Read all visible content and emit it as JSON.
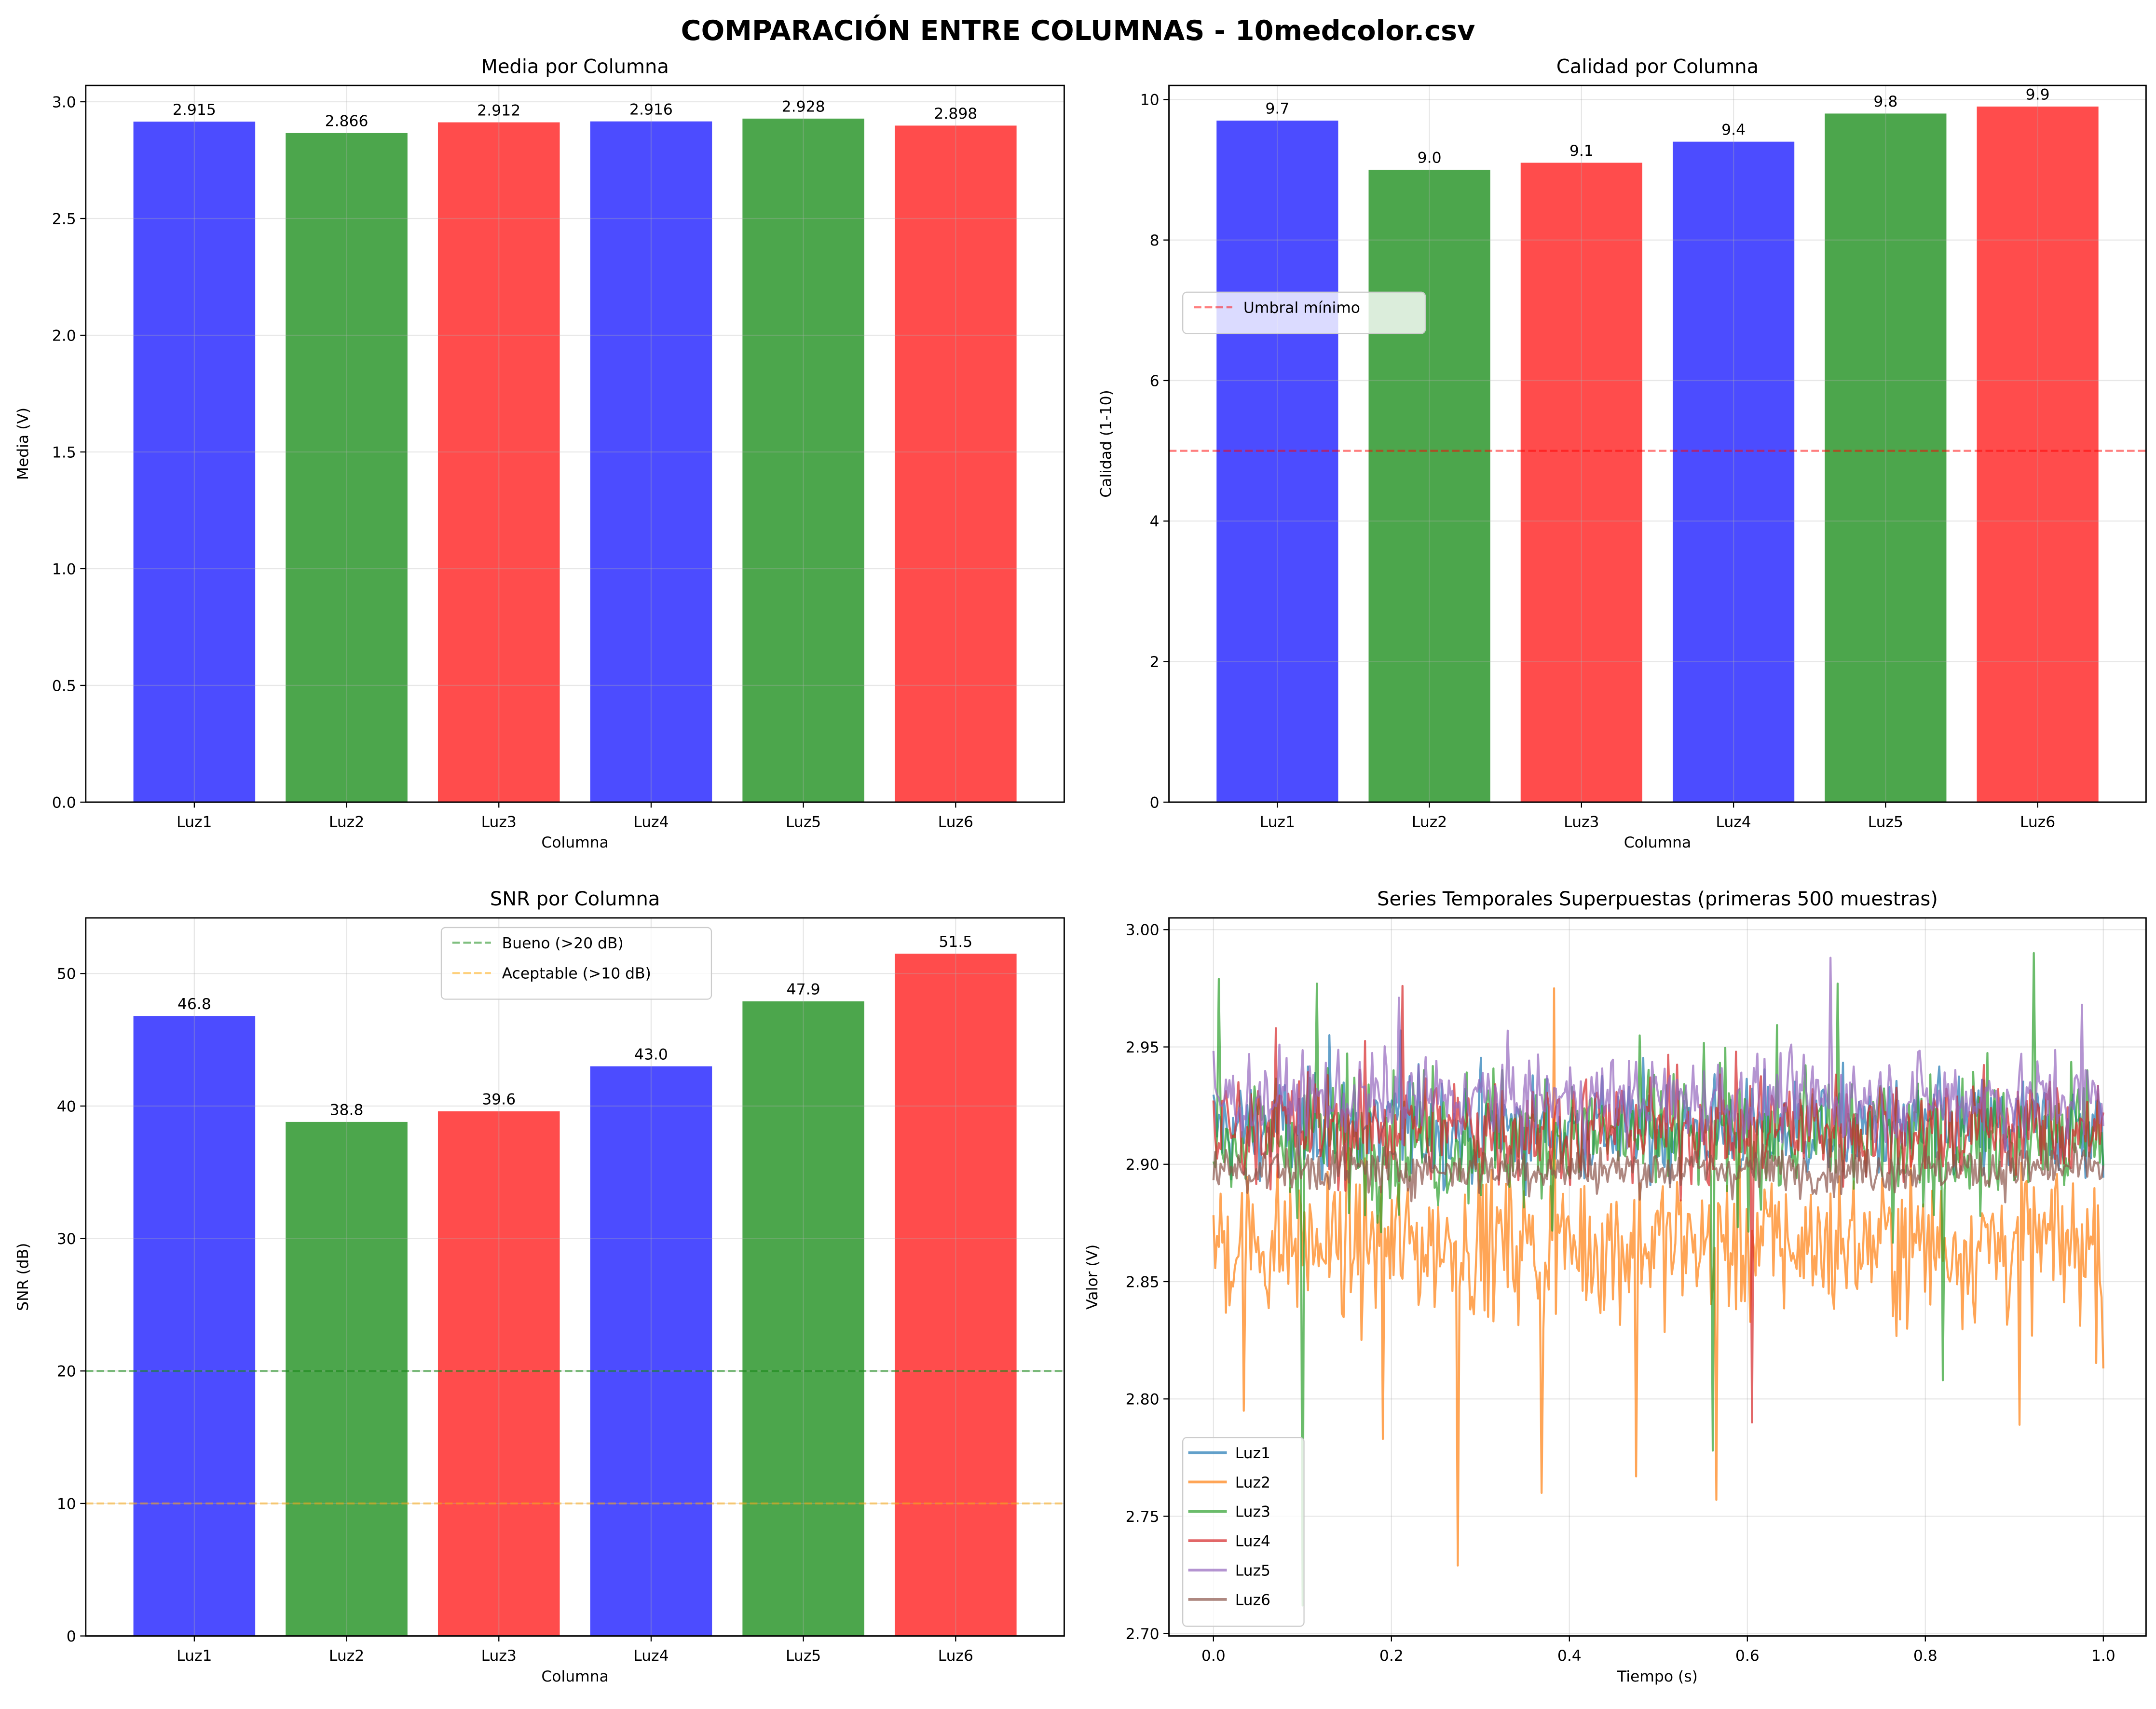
{
  "suptitle": "COMPARACIÓN ENTRE COLUMNAS - 10medcolor.csv",
  "chart_data": [
    {
      "id": "media",
      "type": "bar",
      "title": "Media por Columna",
      "xlabel": "Columna",
      "ylabel": "Media (V)",
      "categories": [
        "Luz1",
        "Luz2",
        "Luz3",
        "Luz4",
        "Luz5",
        "Luz6"
      ],
      "values": [
        2.915,
        2.866,
        2.912,
        2.916,
        2.928,
        2.898
      ],
      "value_labels": [
        "2.915",
        "2.866",
        "2.912",
        "2.916",
        "2.928",
        "2.898"
      ],
      "colors": [
        "#0000ff",
        "#008000",
        "#ff0000",
        "#0000ff",
        "#008000",
        "#ff0000"
      ],
      "ylim": [
        0,
        3.07
      ],
      "yticks": [
        0.0,
        0.5,
        1.0,
        1.5,
        2.0,
        2.5,
        3.0
      ],
      "ytick_labels": [
        "0.0",
        "0.5",
        "1.0",
        "1.5",
        "2.0",
        "2.5",
        "3.0"
      ],
      "grid": true,
      "hlines": []
    },
    {
      "id": "calidad",
      "type": "bar",
      "title": "Calidad por Columna",
      "xlabel": "Columna",
      "ylabel": "Calidad (1-10)",
      "categories": [
        "Luz1",
        "Luz2",
        "Luz3",
        "Luz4",
        "Luz5",
        "Luz6"
      ],
      "values": [
        9.7,
        9.0,
        9.1,
        9.4,
        9.8,
        9.9
      ],
      "value_labels": [
        "9.7",
        "9.0",
        "9.1",
        "9.4",
        "9.8",
        "9.9"
      ],
      "colors": [
        "#0000ff",
        "#008000",
        "#ff0000",
        "#0000ff",
        "#008000",
        "#ff0000"
      ],
      "ylim": [
        0,
        10.2
      ],
      "yticks": [
        0,
        2,
        4,
        6,
        8,
        10
      ],
      "ytick_labels": [
        "0",
        "2",
        "4",
        "6",
        "8",
        "10"
      ],
      "grid": true,
      "hlines": [
        {
          "y": 5,
          "color": "#ff0000",
          "label": "Umbral mínimo"
        }
      ],
      "legend": "top-left"
    },
    {
      "id": "snr",
      "type": "bar",
      "title": "SNR por Columna",
      "xlabel": "Columna",
      "ylabel": "SNR (dB)",
      "categories": [
        "Luz1",
        "Luz2",
        "Luz3",
        "Luz4",
        "Luz5",
        "Luz6"
      ],
      "values": [
        46.8,
        38.8,
        39.6,
        43.0,
        47.9,
        51.5
      ],
      "value_labels": [
        "46.8",
        "38.8",
        "39.6",
        "43.0",
        "47.9",
        "51.5"
      ],
      "colors": [
        "#0000ff",
        "#008000",
        "#ff0000",
        "#0000ff",
        "#008000",
        "#ff0000"
      ],
      "ylim": [
        0,
        54.2
      ],
      "yticks": [
        0,
        10,
        20,
        30,
        40,
        50
      ],
      "ytick_labels": [
        "0",
        "10",
        "20",
        "30",
        "40",
        "50"
      ],
      "grid": true,
      "hlines": [
        {
          "y": 20,
          "color": "#008000",
          "label": "Bueno (>20 dB)"
        },
        {
          "y": 10,
          "color": "#ffa500",
          "label": "Aceptable (>10 dB)"
        }
      ],
      "legend": "top-center"
    },
    {
      "id": "series",
      "type": "line",
      "title": "Series Temporales Superpuestas (primeras 500 muestras)",
      "xlabel": "Tiempo (s)",
      "ylabel": "Valor (V)",
      "xlim": [
        -0.05,
        1.048
      ],
      "ylim": [
        2.699,
        3.005
      ],
      "xticks": [
        0.0,
        0.2,
        0.4,
        0.6,
        0.8,
        1.0
      ],
      "xtick_labels": [
        "0.0",
        "0.2",
        "0.4",
        "0.6",
        "0.8",
        "1.0"
      ],
      "yticks": [
        2.7,
        2.75,
        2.8,
        2.85,
        2.9,
        2.95,
        3.0
      ],
      "ytick_labels": [
        "2.70",
        "2.75",
        "2.80",
        "2.85",
        "2.90",
        "2.95",
        "3.00"
      ],
      "samples": 500,
      "grid": true,
      "legend": "bottom-left",
      "series": [
        {
          "name": "Luz1",
          "color": "#1f77b4",
          "mean": 2.915,
          "std": 0.011,
          "spikes": [
            [
              0.21,
              2.957
            ],
            [
              0.13,
              2.955
            ]
          ]
        },
        {
          "name": "Luz2",
          "color": "#ff7f0e",
          "mean": 2.866,
          "std": 0.016,
          "spikes": [
            [
              0.034,
              2.795
            ],
            [
              0.19,
              2.783
            ],
            [
              0.274,
              2.729
            ],
            [
              0.368,
              2.76
            ],
            [
              0.382,
              2.975
            ],
            [
              0.474,
              2.767
            ],
            [
              0.565,
              2.757
            ],
            [
              0.905,
              2.789
            ],
            [
              0.999,
              2.813
            ]
          ]
        },
        {
          "name": "Luz3",
          "color": "#2ca02c",
          "mean": 2.912,
          "std": 0.015,
          "spikes": [
            [
              0.006,
              2.979
            ],
            [
              0.101,
              2.712
            ],
            [
              0.117,
              2.977
            ],
            [
              0.562,
              2.778
            ],
            [
              0.82,
              2.808
            ],
            [
              0.922,
              2.99
            ],
            [
              0.702,
              2.977
            ]
          ]
        },
        {
          "name": "Luz4",
          "color": "#d62728",
          "mean": 2.916,
          "std": 0.012,
          "spikes": [
            [
              0.212,
              2.976
            ],
            [
              0.606,
              2.79
            ],
            [
              0.071,
              2.958
            ]
          ]
        },
        {
          "name": "Luz5",
          "color": "#9467bd",
          "mean": 2.928,
          "std": 0.009,
          "spikes": [
            [
              0.694,
              2.988
            ],
            [
              0.208,
              2.971
            ],
            [
              0.976,
              2.968
            ]
          ]
        },
        {
          "name": "Luz6",
          "color": "#8c564b",
          "mean": 2.898,
          "std": 0.005,
          "spikes": []
        }
      ]
    }
  ]
}
